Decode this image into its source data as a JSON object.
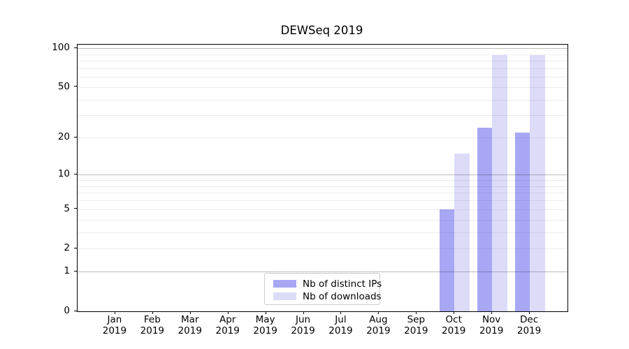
{
  "chart_data": {
    "type": "bar",
    "title": "DEWSeq 2019",
    "categories": [
      "Jan",
      "Feb",
      "Mar",
      "Apr",
      "May",
      "Jun",
      "Jul",
      "Aug",
      "Sep",
      "Oct",
      "Nov",
      "Dec"
    ],
    "year": "2019",
    "series": [
      {
        "name": "Nb of distinct IPs",
        "color": "#a7a7f4",
        "values": [
          0,
          0,
          0,
          0,
          0,
          0,
          0,
          0,
          0,
          5,
          24,
          22
        ]
      },
      {
        "name": "Nb of downloads",
        "color": "#dcdcf9",
        "values": [
          0,
          0,
          0,
          0,
          0,
          0,
          0,
          0,
          0,
          15,
          88,
          88
        ]
      }
    ],
    "y_scale": "log10(1+x)",
    "y_tick_values": [
      100,
      50,
      20,
      10,
      5,
      2,
      1,
      0
    ],
    "y_tick_labels": [
      "100",
      "50",
      "20",
      "10",
      "5",
      "2",
      "1",
      "0"
    ],
    "major_gridlines": [
      1,
      10,
      100
    ],
    "minor_gridlines": [
      2,
      3,
      4,
      5,
      6,
      7,
      8,
      9,
      20,
      30,
      40,
      50,
      60,
      70,
      80,
      90
    ],
    "ylim": [
      0,
      106
    ],
    "grid": true,
    "legend_position": "lower center"
  },
  "colors": {
    "axis": "#000000",
    "major_grid": "#bfbfbf",
    "minor_grid": "#ececec",
    "legend_border": "#cccccc",
    "background": "#ffffff"
  }
}
